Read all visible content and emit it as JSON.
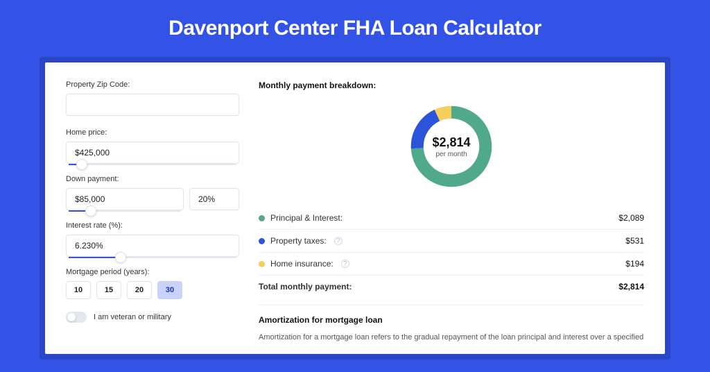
{
  "title": "Davenport Center FHA Loan Calculator",
  "colors": {
    "page_bg": "#3253e6",
    "outer_bg": "#2a46c6",
    "card_bg": "#ffffff",
    "slider_track": "#e4e7ee",
    "slider_fill": "#3253e6",
    "input_border": "#dfe3eb",
    "divider": "#eef0f4"
  },
  "form": {
    "zip": {
      "label": "Property Zip Code:",
      "value": ""
    },
    "price": {
      "label": "Home price:",
      "value": "$425,000",
      "slider_pct": 8
    },
    "down": {
      "label": "Down payment:",
      "value": "$85,000",
      "pct_value": "20%",
      "slider_pct": 20
    },
    "rate": {
      "label": "Interest rate (%):",
      "value": "6.230%",
      "slider_pct": 31
    },
    "period": {
      "label": "Mortgage period (years):",
      "options": [
        "10",
        "15",
        "20",
        "30"
      ],
      "selected": "30"
    },
    "veteran": {
      "label": "I am veteran or military",
      "checked": false
    }
  },
  "breakdown": {
    "title": "Monthly payment breakdown:",
    "donut": {
      "amount": "$2,814",
      "sub": "per month",
      "ring_width": 18,
      "segments": [
        {
          "color": "#4fa98a",
          "pct": 74
        },
        {
          "color": "#2b54d9",
          "pct": 19
        },
        {
          "color": "#f4cf5b",
          "pct": 7
        }
      ]
    },
    "rows": [
      {
        "dot": "#4fa98a",
        "label": "Principal & Interest:",
        "info": false,
        "value": "$2,089"
      },
      {
        "dot": "#2b54d9",
        "label": "Property taxes:",
        "info": true,
        "value": "$531"
      },
      {
        "dot": "#f4cf5b",
        "label": "Home insurance:",
        "info": true,
        "value": "$194"
      }
    ],
    "total": {
      "label": "Total monthly payment:",
      "value": "$2,814"
    }
  },
  "amort": {
    "title": "Amortization for mortgage loan",
    "text": "Amortization for a mortgage loan refers to the gradual repayment of the loan principal and interest over a specified"
  }
}
